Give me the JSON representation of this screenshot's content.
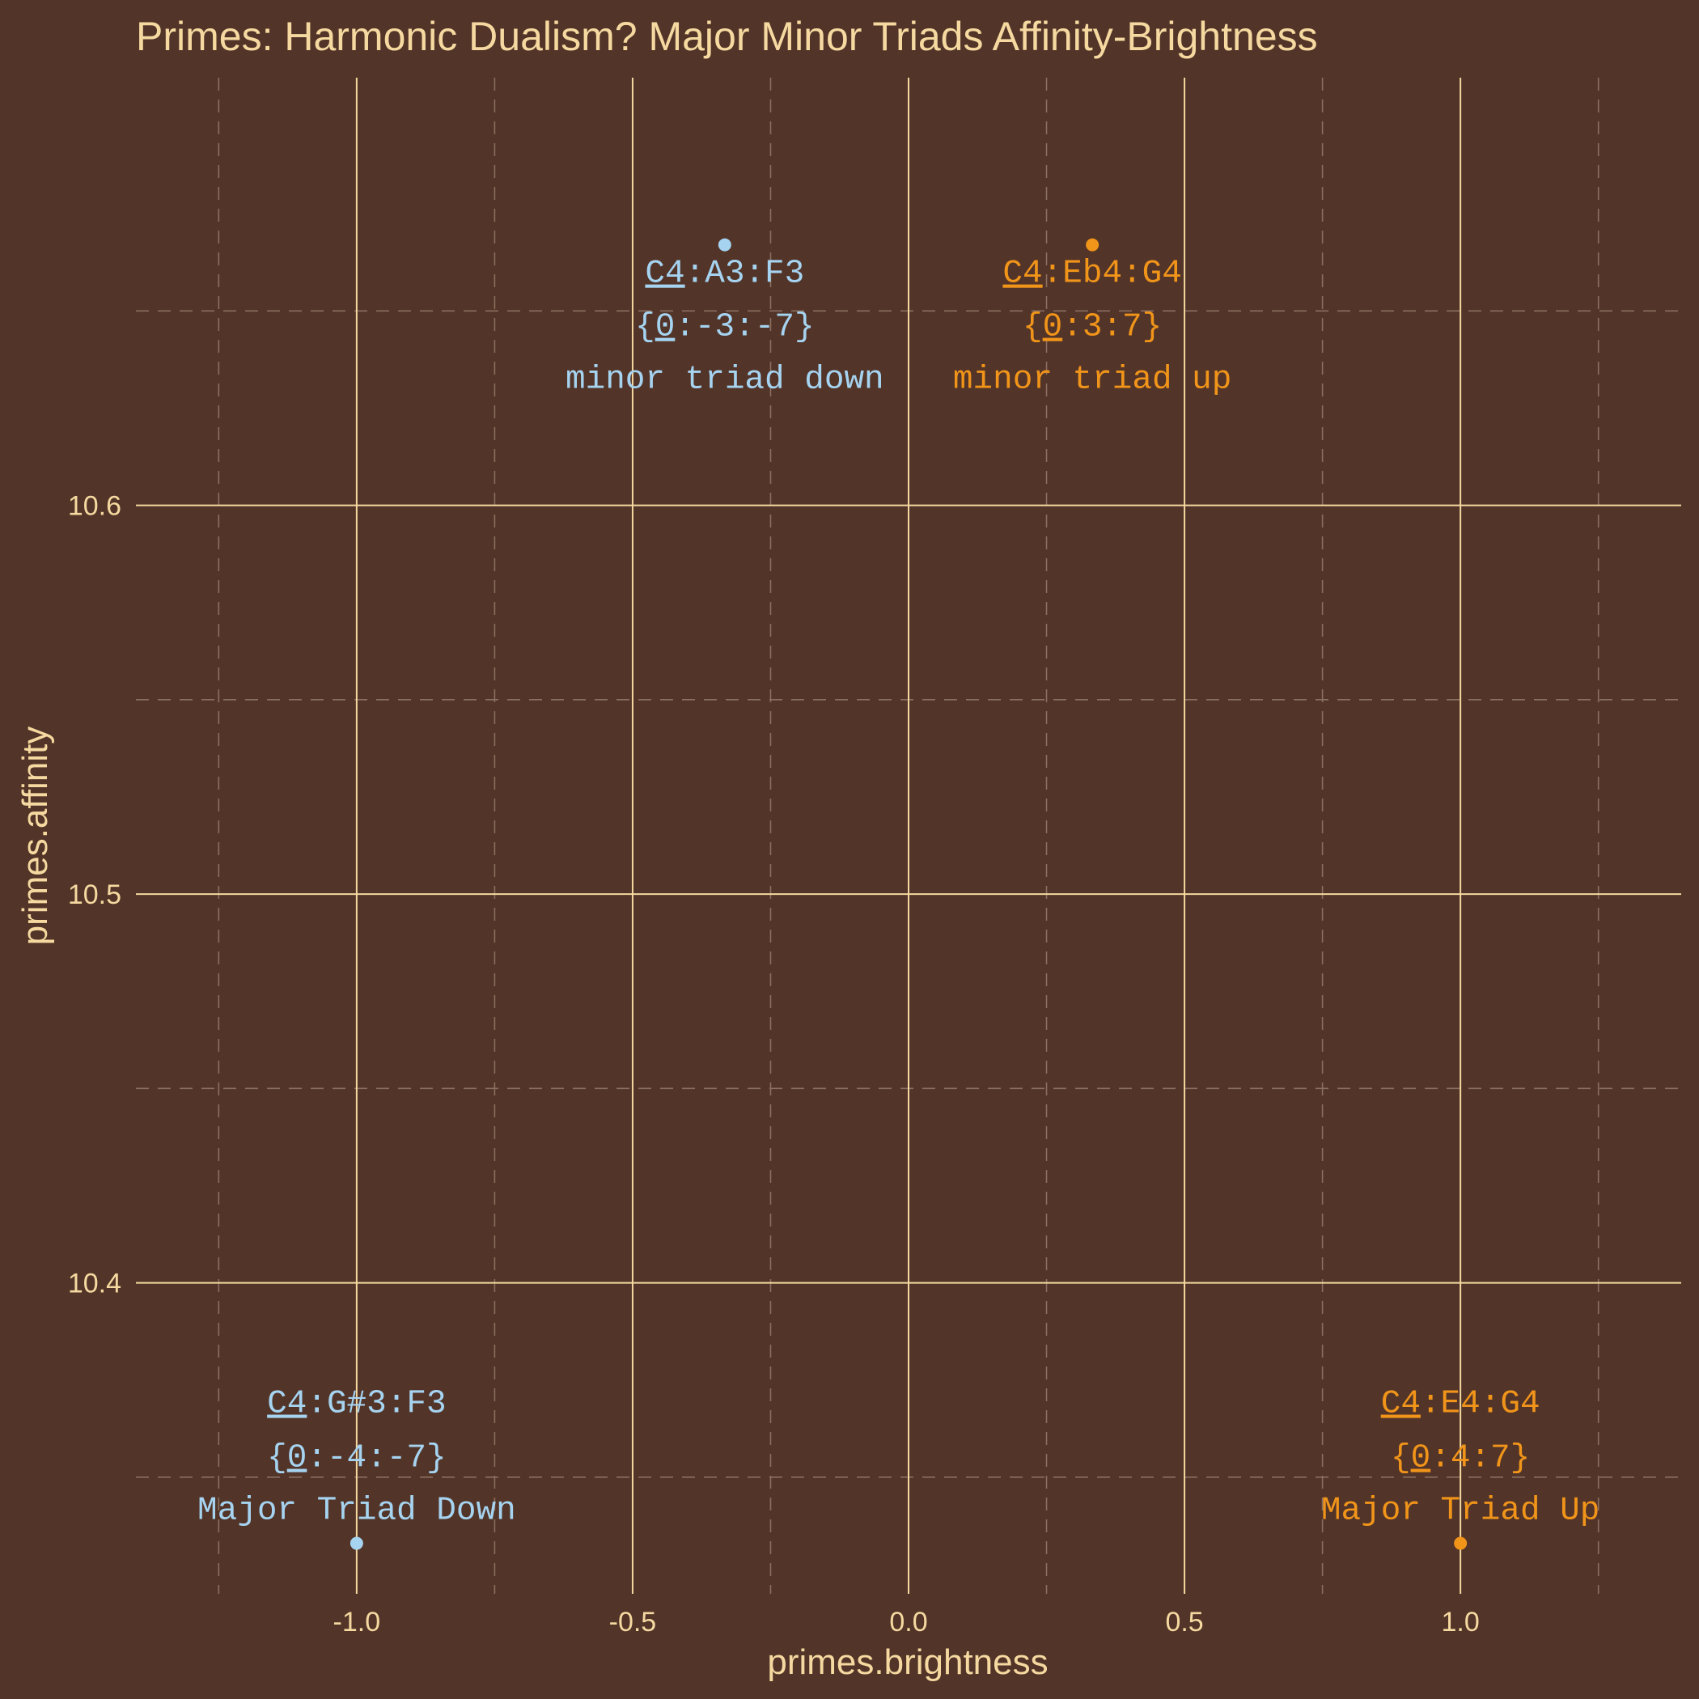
{
  "chart_data": {
    "type": "scatter",
    "title": "Primes: Harmonic Dualism? Major Minor Triads Affinity-Brightness",
    "xlabel": "primes.brightness",
    "ylabel": "primes.affinity",
    "xlim": [
      -1.4,
      1.4
    ],
    "ylim": [
      10.32,
      10.71
    ],
    "x_ticks": [
      -1.0,
      -0.5,
      0.0,
      0.5,
      1.0
    ],
    "x_tick_labels": [
      "-1.0",
      "-0.5",
      "0.0",
      "0.5",
      "1.0"
    ],
    "y_ticks": [
      10.4,
      10.5,
      10.6
    ],
    "y_tick_labels": [
      "10.4",
      "10.5",
      "10.6"
    ],
    "grid": true,
    "colors": {
      "background": "#523428",
      "text": "#f5d9a0",
      "down": "#a6d3f0",
      "up": "#f0941a"
    },
    "points": [
      {
        "x": -1.0,
        "y": 10.333,
        "color": "down",
        "notes": [
          "C4",
          ":G#3:F3"
        ],
        "intervals": [
          "{",
          "0",
          ":-4:-7}"
        ],
        "name": "Major Triad Down",
        "label_side": "above"
      },
      {
        "x": 1.0,
        "y": 10.333,
        "color": "up",
        "notes": [
          "C4",
          ":E4:G4"
        ],
        "intervals": [
          "{",
          "0",
          ":4:7}"
        ],
        "name": "Major Triad Up",
        "label_side": "above"
      },
      {
        "x": -0.333,
        "y": 10.667,
        "color": "down",
        "notes": [
          "C4",
          ":A3:F3"
        ],
        "intervals": [
          "{",
          "0",
          ":-3:-7}"
        ],
        "name": "minor triad down",
        "label_side": "below"
      },
      {
        "x": 0.333,
        "y": 10.667,
        "color": "up",
        "notes": [
          "C4",
          ":Eb4:G4"
        ],
        "intervals": [
          "{",
          "0",
          ":3:7}"
        ],
        "name": "minor triad up",
        "label_side": "below"
      }
    ]
  }
}
